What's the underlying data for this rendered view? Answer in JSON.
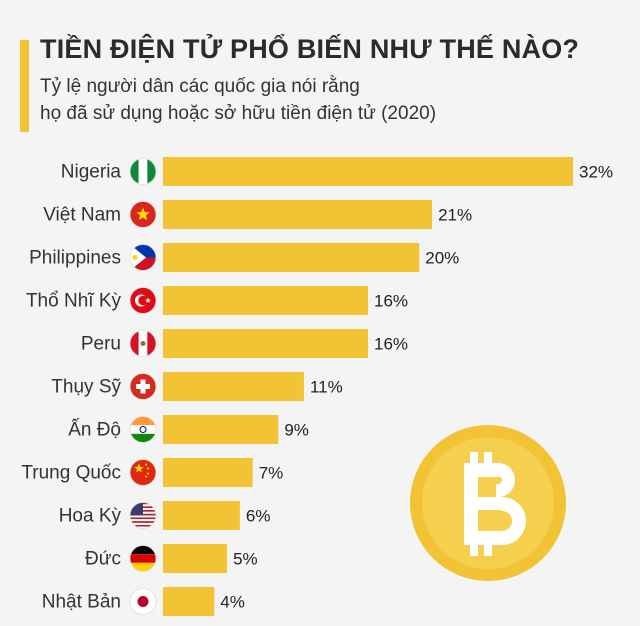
{
  "header": {
    "title": "TIỀN ĐIỆN TỬ PHỔ BIẾN NHƯ THẾ NÀO?",
    "subtitle_line1": "Tỷ lệ người dân các quốc gia nói rằng",
    "subtitle_line2": "họ đã sử dụng hoặc sở hữu tiền điện tử (2020)"
  },
  "colors": {
    "bar": "#f2c335",
    "accent": "#f2c335",
    "background": "#f4f4f4",
    "coin": "#f2c335"
  },
  "chart_data": {
    "type": "bar",
    "orientation": "horizontal",
    "title": "TIỀN ĐIỆN TỬ PHỔ BIẾN NHƯ THẾ NÀO?",
    "subtitle": "Tỷ lệ người dân các quốc gia nói rằng họ đã sử dụng hoặc sở hữu tiền điện tử (2020)",
    "xlabel": "",
    "ylabel": "",
    "grid": false,
    "legend": "none",
    "categories": [
      "Nigeria",
      "Việt Nam",
      "Philippines",
      "Thổ Nhĩ Kỳ",
      "Peru",
      "Thụy Sỹ",
      "Ấn Độ",
      "Trung Quốc",
      "Hoa Kỳ",
      "Đức",
      "Nhật Bản"
    ],
    "flags": [
      "flag-nigeria-icon",
      "flag-vietnam-icon",
      "flag-philippines-icon",
      "flag-turkey-icon",
      "flag-peru-icon",
      "flag-switzerland-icon",
      "flag-india-icon",
      "flag-china-icon",
      "flag-usa-icon",
      "flag-germany-icon",
      "flag-japan-icon"
    ],
    "values": [
      32,
      21,
      20,
      16,
      16,
      11,
      9,
      7,
      6,
      5,
      4
    ],
    "value_labels": [
      "32%",
      "21%",
      "20%",
      "16%",
      "16%",
      "11%",
      "9%",
      "7%",
      "6%",
      "5%",
      "4%"
    ],
    "xlim": [
      0,
      32
    ]
  },
  "decoration": {
    "coin_icon": "bitcoin-coin-icon"
  }
}
